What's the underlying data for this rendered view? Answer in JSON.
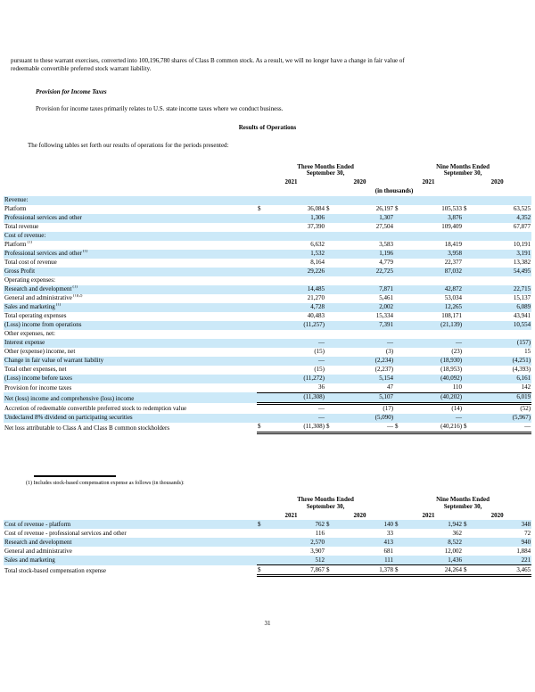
{
  "colors": {
    "row_highlight": "#cce9f8",
    "text": "#000000",
    "background": "#ffffff"
  },
  "doc": {
    "intro_paragraph": "pursuant to these warrant exercises, converted into 100,196,780 shares of Class B common stock. As a result, we will no longer have a change in fair value of\nredeemable convertible preferred stock warrant liability.",
    "provision_heading": "Provision for Income Taxes",
    "provision_body": "Provision for income taxes primarily relates to U.S. state income taxes where we conduct business.",
    "results_heading": "Results of Operations",
    "tables_intro": "The following tables set forth our results of operations for the periods presented:",
    "footnote": "(1) Includes stock-based compensation expense as follows (in thousands):",
    "page_number": "31"
  },
  "table1": {
    "groups": [
      "Three Months Ended\nSeptember 30,",
      "Nine Months Ended\nSeptember 30,"
    ],
    "years": [
      "2021",
      "2020",
      "2021",
      "2020"
    ],
    "units": "(in thousands)",
    "rows": [
      {
        "label": "Revenue:",
        "indent": 0,
        "shade": true,
        "values": [
          "",
          "",
          "",
          ""
        ]
      },
      {
        "label": "Platform",
        "indent": 1,
        "shade": false,
        "dollar": true,
        "values": [
          "36,084",
          "26,197",
          "105,533",
          "63,525"
        ]
      },
      {
        "label": "Professional services and other",
        "indent": 1,
        "shade": true,
        "values": [
          "1,306",
          "1,307",
          "3,876",
          "4,352"
        ]
      },
      {
        "label": "Total revenue",
        "indent": 2,
        "shade": false,
        "values": [
          "37,390",
          "27,504",
          "109,409",
          "67,877"
        ]
      },
      {
        "label": "Cost of revenue:",
        "indent": 0,
        "shade": true,
        "values": [
          "",
          "",
          "",
          ""
        ]
      },
      {
        "label": "Platform",
        "sup": "(1)",
        "indent": 1,
        "shade": false,
        "values": [
          "6,632",
          "3,583",
          "18,419",
          "10,191"
        ]
      },
      {
        "label": "Professional services and other",
        "sup": "(1)",
        "indent": 1,
        "shade": true,
        "values": [
          "1,532",
          "1,196",
          "3,958",
          "3,191"
        ]
      },
      {
        "label": "Total cost of revenue",
        "indent": 2,
        "shade": false,
        "values": [
          "8,164",
          "4,779",
          "22,377",
          "13,382"
        ]
      },
      {
        "label": "Gross Profit",
        "indent": 0,
        "shade": true,
        "values": [
          "29,226",
          "22,725",
          "87,032",
          "54,495"
        ]
      },
      {
        "label": "Operating expenses:",
        "indent": 0,
        "shade": false,
        "values": [
          "",
          "",
          "",
          ""
        ]
      },
      {
        "label": "Research and development",
        "sup": "(1)",
        "indent": 1,
        "shade": true,
        "values": [
          "14,485",
          "7,871",
          "42,872",
          "22,715"
        ]
      },
      {
        "label": "General and administrative",
        "sup": "(1)(2)",
        "indent": 1,
        "shade": false,
        "values": [
          "21,270",
          "5,461",
          "53,034",
          "15,137"
        ]
      },
      {
        "label": "Sales and marketing",
        "sup": "(1)",
        "indent": 1,
        "shade": true,
        "values": [
          "4,728",
          "2,002",
          "12,265",
          "6,089"
        ]
      },
      {
        "label": "Total operating expenses",
        "indent": 2,
        "shade": false,
        "values": [
          "40,483",
          "15,334",
          "108,171",
          "43,941"
        ]
      },
      {
        "label": "(Loss) income from operations",
        "indent": 0,
        "shade": true,
        "values": [
          "(11,257)",
          "7,391",
          "(21,139)",
          "10,554"
        ]
      },
      {
        "label": "Other expenses, net:",
        "indent": 0,
        "shade": false,
        "values": [
          "",
          "",
          "",
          ""
        ]
      },
      {
        "label": "Interest expense",
        "indent": 1,
        "shade": true,
        "values": [
          "—",
          "—",
          "—",
          "(157)"
        ]
      },
      {
        "label": "Other (expense) income, net",
        "indent": 1,
        "shade": false,
        "values": [
          "(15)",
          "(3)",
          "(23)",
          "15"
        ]
      },
      {
        "label": "Change in fair value of warrant liability",
        "indent": 1,
        "shade": true,
        "values": [
          "—",
          "(2,234)",
          "(18,930)",
          "(4,251)"
        ]
      },
      {
        "label": "Total other expenses, net",
        "indent": 2,
        "shade": false,
        "values": [
          "(15)",
          "(2,237)",
          "(18,953)",
          "(4,393)"
        ]
      },
      {
        "label": "(Loss) income before taxes",
        "indent": 0,
        "shade": true,
        "values": [
          "(11,272)",
          "5,154",
          "(40,092)",
          "6,161"
        ]
      },
      {
        "label": "Provision for income taxes",
        "indent": 0,
        "shade": false,
        "values": [
          "36",
          "47",
          "110",
          "142"
        ]
      },
      {
        "label": "Net (loss) income and comprehensive (loss) income",
        "indent": 0,
        "shade": true,
        "border": "top-double",
        "values": [
          "(11,308)",
          "5,107",
          "(40,202)",
          "6,019"
        ]
      },
      {
        "label": "Accretion of redeemable convertible preferred stock to redemption value",
        "indent": 1,
        "shade": false,
        "values": [
          "—",
          "(17)",
          "(14)",
          "(52)"
        ]
      },
      {
        "label": "Undeclared 8% dividend on participating securities",
        "indent": 1,
        "shade": true,
        "values": [
          "—",
          "(5,090)",
          "—",
          "(5,967)"
        ]
      },
      {
        "label": "Net loss attributable to Class A and Class B common stockholders",
        "indent": 0,
        "shade": false,
        "dollar": true,
        "border": "double",
        "values": [
          "(11,308)",
          "—",
          "(40,216)",
          "—"
        ]
      }
    ]
  },
  "table2": {
    "groups": [
      "Three Months Ended\nSeptember 30,",
      "Nine Months Ended\nSeptember 30,"
    ],
    "years": [
      "2021",
      "2020",
      "2021",
      "2020"
    ],
    "rows": [
      {
        "label": "Cost of revenue - platform",
        "indent": 0,
        "shade": true,
        "dollar": true,
        "values": [
          "762",
          "140",
          "1,942",
          "348"
        ]
      },
      {
        "label": "Cost of revenue - professional services and other",
        "indent": 0,
        "shade": false,
        "values": [
          "116",
          "33",
          "362",
          "72"
        ]
      },
      {
        "label": "Research and development",
        "indent": 0,
        "shade": true,
        "values": [
          "2,570",
          "413",
          "8,522",
          "940"
        ]
      },
      {
        "label": "General and administrative",
        "indent": 0,
        "shade": false,
        "values": [
          "3,907",
          "681",
          "12,002",
          "1,884"
        ]
      },
      {
        "label": "Sales and marketing",
        "indent": 0,
        "shade": true,
        "values": [
          "512",
          "111",
          "1,436",
          "221"
        ]
      },
      {
        "label": "Total stock-based compensation expense",
        "indent": 1,
        "shade": false,
        "dollar": true,
        "border": "top-double",
        "values": [
          "7,867",
          "1,378",
          "24,264",
          "3,465"
        ]
      }
    ]
  }
}
